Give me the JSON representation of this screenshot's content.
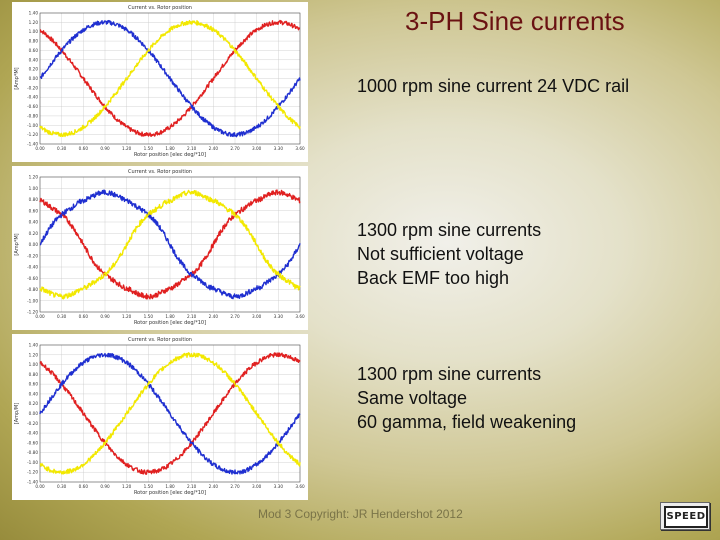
{
  "slide": {
    "title": "3-PH Sine currents",
    "captions": [
      {
        "lines": [
          "1000 rpm sine current 24 VDC rail"
        ]
      },
      {
        "lines": [
          "1300 rpm sine currents",
          "Not  sufficient  voltage",
          "Back EMF too high"
        ]
      },
      {
        "lines": [
          "1300 rpm sine currents",
          "Same voltage",
          "60 gamma, field weakening"
        ]
      }
    ],
    "footer": "Mod 3 Copyright: JR Hendershot 2012",
    "logo_text": "SPEED"
  },
  "colors": {
    "red": "#e02020",
    "blue": "#1f2fd0",
    "yellow": "#f2e800"
  },
  "chart_data": [
    {
      "type": "line",
      "title": "Current vs. Rotor position",
      "xlabel": "Rotor position [elec deg/*10]",
      "ylabel": "[Amp*M]",
      "x_ticks": [
        "0.00",
        "0.30",
        "0.60",
        "0.90",
        "1.20",
        "1.50",
        "1.80",
        "2.10",
        "2.40",
        "2.70",
        "3.00",
        "3.30",
        "3.60"
      ],
      "y_ticks": [
        "1.40",
        "1.20",
        "1.00",
        "0.80",
        "0.60",
        "0.40",
        "0.20",
        "0.00",
        "-0.20",
        "-0.40",
        "-0.60",
        "-0.80",
        "-1.00",
        "-1.20",
        "-1.40"
      ],
      "xlim": [
        0,
        3.6
      ],
      "ylim": [
        -1.4,
        1.4
      ],
      "series": [
        {
          "color": "red",
          "amplitude": 1.2,
          "phase_deg": 120,
          "distortion": "none"
        },
        {
          "color": "blue",
          "amplitude": 1.2,
          "phase_deg": 0,
          "distortion": "none"
        },
        {
          "color": "yellow",
          "amplitude": 1.2,
          "phase_deg": 240,
          "distortion": "none"
        }
      ]
    },
    {
      "type": "line",
      "title": "Current vs. Rotor position",
      "xlabel": "Rotor position [elec deg/*10]",
      "ylabel": "[Amp*M]",
      "x_ticks": [
        "0.00",
        "0.30",
        "0.60",
        "0.90",
        "1.20",
        "1.50",
        "1.80",
        "2.10",
        "2.40",
        "2.70",
        "3.00",
        "3.30",
        "3.60"
      ],
      "y_ticks": [
        "1.20",
        "1.00",
        "0.80",
        "0.60",
        "0.40",
        "0.20",
        "0.00",
        "-0.20",
        "-0.40",
        "-0.60",
        "-0.80",
        "-1.00",
        "-1.20"
      ],
      "xlim": [
        0,
        3.6
      ],
      "ylim": [
        -1.2,
        1.2
      ],
      "series": [
        {
          "color": "red",
          "amplitude": 1.0,
          "phase_deg": 120,
          "distortion": "flattened"
        },
        {
          "color": "blue",
          "amplitude": 1.0,
          "phase_deg": 0,
          "distortion": "flattened"
        },
        {
          "color": "yellow",
          "amplitude": 1.0,
          "phase_deg": 240,
          "distortion": "flattened"
        }
      ]
    },
    {
      "type": "line",
      "title": "Current vs. Rotor position",
      "xlabel": "Rotor position [elec deg/*10]",
      "ylabel": "[Amp/M]",
      "x_ticks": [
        "0.00",
        "0.30",
        "0.60",
        "0.90",
        "1.20",
        "1.50",
        "1.80",
        "2.10",
        "2.40",
        "2.70",
        "3.00",
        "3.30",
        "3.60"
      ],
      "y_ticks": [
        "1.40",
        "1.20",
        "1.00",
        "0.80",
        "0.60",
        "0.40",
        "0.20",
        "0.00",
        "-0.20",
        "-0.40",
        "-0.60",
        "-0.80",
        "-1.00",
        "-1.20",
        "-1.40"
      ],
      "xlim": [
        0,
        3.6
      ],
      "ylim": [
        -1.4,
        1.4
      ],
      "series": [
        {
          "color": "red",
          "amplitude": 1.2,
          "phase_deg": 120,
          "distortion": "none"
        },
        {
          "color": "blue",
          "amplitude": 1.2,
          "phase_deg": 0,
          "distortion": "none"
        },
        {
          "color": "yellow",
          "amplitude": 1.2,
          "phase_deg": 240,
          "distortion": "none"
        }
      ]
    }
  ]
}
